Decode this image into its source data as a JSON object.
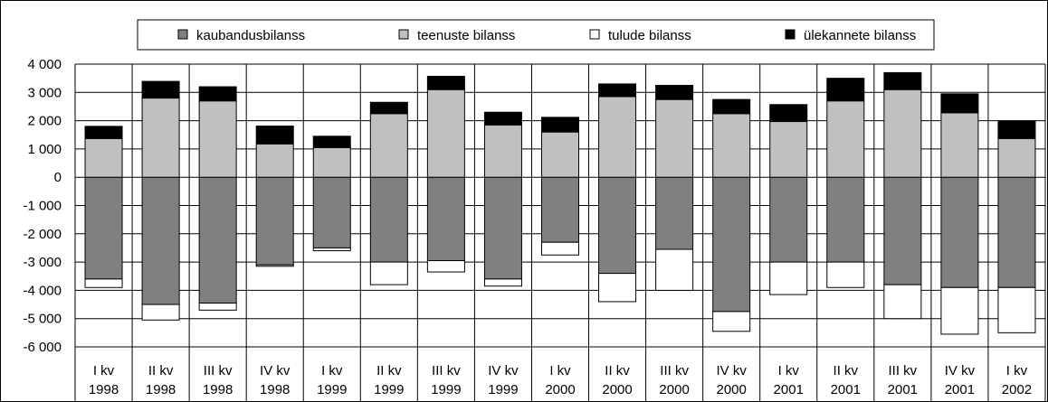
{
  "chart_data": {
    "type": "bar",
    "stacked": true,
    "categories": [
      [
        "I kv",
        "1998"
      ],
      [
        "II kv",
        "1998"
      ],
      [
        "III kv",
        "1998"
      ],
      [
        "IV kv",
        "1998"
      ],
      [
        "I kv",
        "1999"
      ],
      [
        "II kv",
        "1999"
      ],
      [
        "III kv",
        "1999"
      ],
      [
        "IV kv",
        "1999"
      ],
      [
        "I kv",
        "2000"
      ],
      [
        "II kv",
        "2000"
      ],
      [
        "III kv",
        "2000"
      ],
      [
        "IV kv",
        "2000"
      ],
      [
        "I kv",
        "2001"
      ],
      [
        "II kv",
        "2001"
      ],
      [
        "III kv",
        "2001"
      ],
      [
        "IV kv",
        "2001"
      ],
      [
        "I kv",
        "2002"
      ]
    ],
    "series": [
      {
        "name": "kaubandusbilanss",
        "color": "#808080",
        "values": [
          -3600,
          -4500,
          -4450,
          -3100,
          -2500,
          -3000,
          -2950,
          -3600,
          -2300,
          -3400,
          -2550,
          -4750,
          -3000,
          -3000,
          -3800,
          -3900,
          -3900
        ]
      },
      {
        "name": "teenuste bilanss",
        "color": "#c0c0c0",
        "values": [
          1370,
          2800,
          2700,
          1180,
          1050,
          2250,
          3100,
          1850,
          1600,
          2850,
          2750,
          2250,
          1970,
          2700,
          3100,
          2280,
          1370
        ]
      },
      {
        "name": "tulude bilanss",
        "color": "#ffffff",
        "values": [
          -300,
          -550,
          -250,
          -50,
          -100,
          -800,
          -400,
          -250,
          -450,
          -1000,
          -1450,
          -700,
          -1150,
          -900,
          -1200,
          -1650,
          -1600
        ]
      },
      {
        "name": "ülekannete bilanss",
        "color": "#000000",
        "values": [
          430,
          590,
          500,
          630,
          400,
          400,
          470,
          450,
          520,
          450,
          500,
          500,
          600,
          800,
          600,
          670,
          620
        ]
      }
    ],
    "y_ticks": [
      "4 000",
      "3 000",
      "2 000",
      "1 000",
      "0",
      "-1 000",
      "-2 000",
      "-3 000",
      "-4 000",
      "-5 000",
      "-6 000"
    ],
    "ylim": [
      -6000,
      4000
    ],
    "grid": true,
    "legend_position": "top"
  }
}
